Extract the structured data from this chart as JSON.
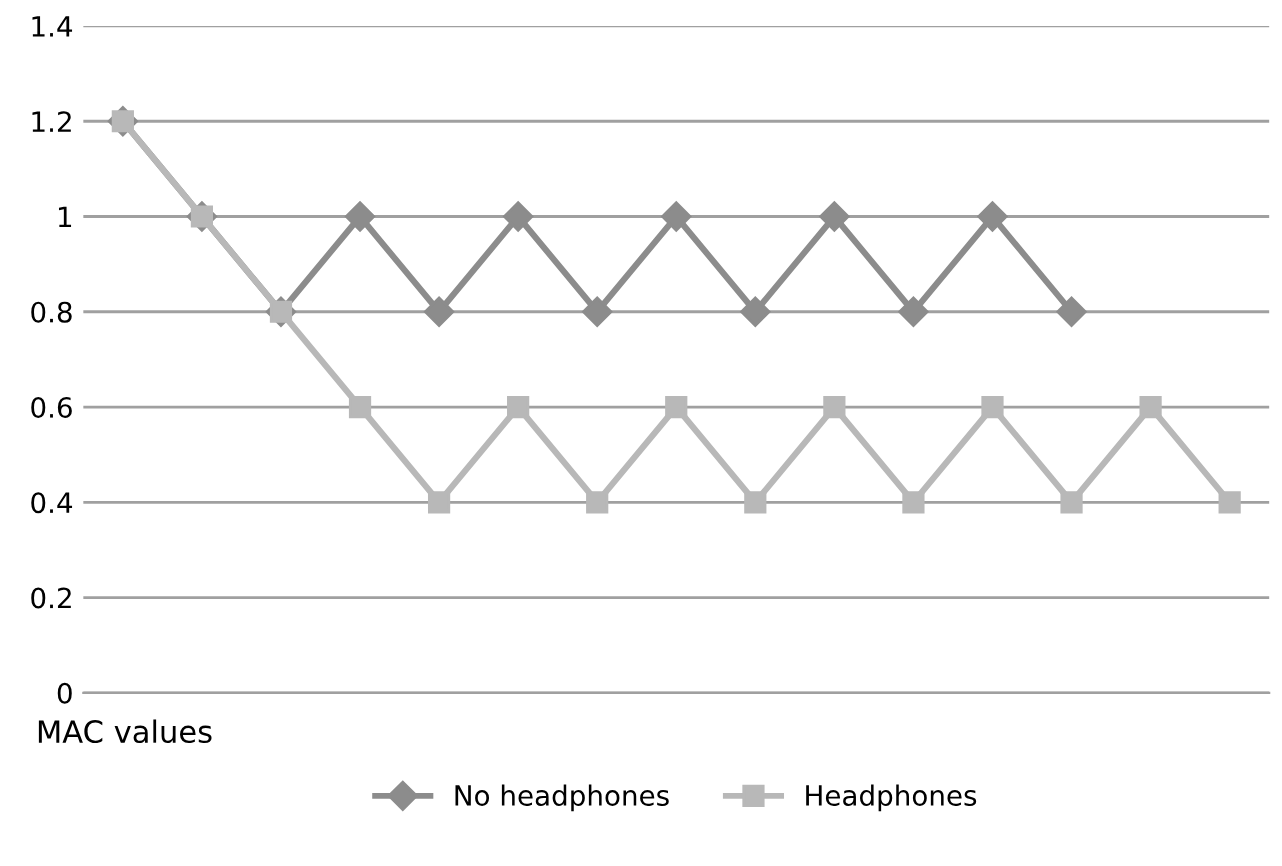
{
  "chart_data": {
    "type": "line",
    "xlabel": "MAC values",
    "categories": [
      null,
      null,
      null,
      null,
      null,
      null,
      null,
      null,
      null,
      null,
      null,
      null,
      null,
      null,
      null
    ],
    "series": [
      {
        "name": "No headphones",
        "color": "#8c8c8c",
        "marker": "diamond",
        "values": [
          1.2,
          1.0,
          0.8,
          1.0,
          0.8,
          1.0,
          0.8,
          1.0,
          0.8,
          1.0,
          0.8,
          1.0,
          0.8,
          null,
          null
        ]
      },
      {
        "name": "Headphones",
        "color": "#b8b8b8",
        "marker": "square",
        "values": [
          1.2,
          1.0,
          0.8,
          0.6,
          0.4,
          0.6,
          0.4,
          0.6,
          0.4,
          0.6,
          0.4,
          0.6,
          0.4,
          0.6,
          0.4
        ]
      }
    ],
    "ylim": [
      0,
      1.4
    ],
    "yticks": [
      0,
      0.2,
      0.4,
      0.6,
      0.8,
      1,
      1.2,
      1.4
    ],
    "grid": "y",
    "legend": "bottom",
    "line_style": "solid"
  }
}
